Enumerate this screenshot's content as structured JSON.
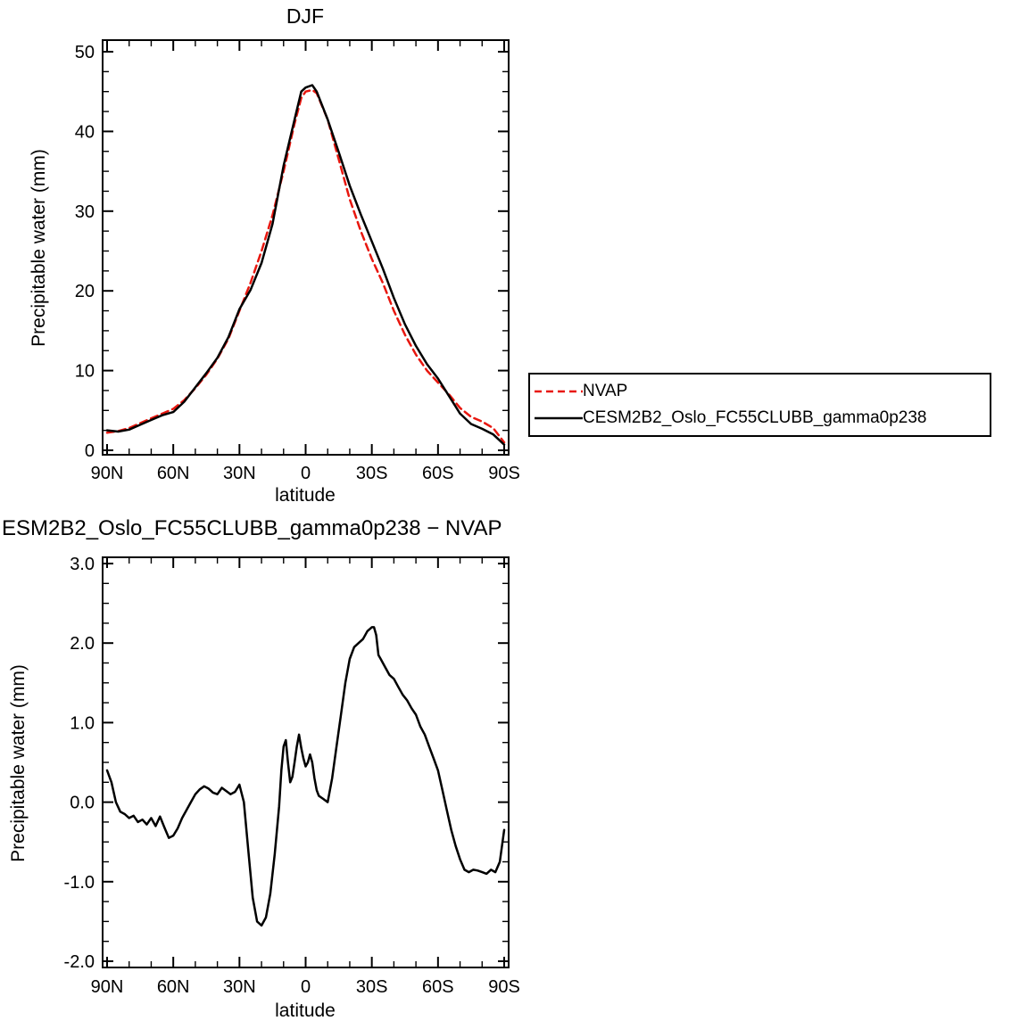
{
  "page": {
    "background": "#ffffff"
  },
  "colors": {
    "nvap_red": "#e8170f",
    "model_black": "#000000"
  },
  "legend": {
    "position": "right-of-top-chart",
    "entries": [
      {
        "label": "NVAP",
        "color": "#e8170f",
        "dashed": true
      },
      {
        "label": "CESM2B2_Oslo_FC55CLUBB_gamma0p238",
        "color": "#000000",
        "dashed": false
      }
    ]
  },
  "chart_data": [
    {
      "type": "line",
      "title": "DJF",
      "xlabel": "latitude",
      "ylabel": "Precipitable water (mm)",
      "xlim": [
        90,
        -90
      ],
      "ylim": [
        0,
        50
      ],
      "grid": false,
      "x_minor_step": 10,
      "y_minor_step": 2.5,
      "x_ticks": [
        {
          "value": 90,
          "label": "90N"
        },
        {
          "value": 60,
          "label": "60N"
        },
        {
          "value": 30,
          "label": "30N"
        },
        {
          "value": 0,
          "label": "0"
        },
        {
          "value": -30,
          "label": "30S"
        },
        {
          "value": -60,
          "label": "60S"
        },
        {
          "value": -90,
          "label": "90S"
        }
      ],
      "y_ticks": [
        {
          "value": 0,
          "label": "0"
        },
        {
          "value": 10,
          "label": "10"
        },
        {
          "value": 20,
          "label": "20"
        },
        {
          "value": 30,
          "label": "30"
        },
        {
          "value": 40,
          "label": "40"
        },
        {
          "value": 50,
          "label": "50"
        }
      ],
      "series": [
        {
          "name": "NVAP",
          "color": "#e8170f",
          "dash": [
            8,
            5
          ],
          "points": [
            [
              90,
              2.2
            ],
            [
              85,
              2.4
            ],
            [
              80,
              2.8
            ],
            [
              75,
              3.4
            ],
            [
              70,
              4.0
            ],
            [
              65,
              4.6
            ],
            [
              60,
              5.2
            ],
            [
              55,
              6.3
            ],
            [
              50,
              7.8
            ],
            [
              45,
              9.5
            ],
            [
              40,
              11.5
            ],
            [
              35,
              14.0
            ],
            [
              30,
              17.5
            ],
            [
              25,
              21.0
            ],
            [
              20,
              25.0
            ],
            [
              15,
              29.5
            ],
            [
              10,
              35.0
            ],
            [
              5,
              41.0
            ],
            [
              2,
              44.2
            ],
            [
              0,
              45.0
            ],
            [
              -3,
              45.2
            ],
            [
              -5,
              44.8
            ],
            [
              -10,
              41.5
            ],
            [
              -15,
              36.5
            ],
            [
              -20,
              31.5
            ],
            [
              -25,
              27.5
            ],
            [
              -30,
              24.0
            ],
            [
              -35,
              21.0
            ],
            [
              -40,
              17.5
            ],
            [
              -45,
              14.5
            ],
            [
              -50,
              12.0
            ],
            [
              -55,
              10.0
            ],
            [
              -60,
              8.5
            ],
            [
              -65,
              7.0
            ],
            [
              -70,
              5.3
            ],
            [
              -75,
              4.2
            ],
            [
              -80,
              3.6
            ],
            [
              -85,
              2.8
            ],
            [
              -90,
              1.0
            ]
          ]
        },
        {
          "name": "CESM2B2_Oslo_FC55CLUBB_gamma0p238",
          "color": "#000000",
          "dash": null,
          "points": [
            [
              90,
              2.5
            ],
            [
              85,
              2.35
            ],
            [
              80,
              2.6
            ],
            [
              75,
              3.2
            ],
            [
              70,
              3.8
            ],
            [
              65,
              4.4
            ],
            [
              60,
              4.8
            ],
            [
              55,
              6.1
            ],
            [
              50,
              7.9
            ],
            [
              45,
              9.7
            ],
            [
              40,
              11.6
            ],
            [
              35,
              14.2
            ],
            [
              30,
              17.7
            ],
            [
              25,
              20.1
            ],
            [
              20,
              23.5
            ],
            [
              15,
              28.4
            ],
            [
              10,
              35.7
            ],
            [
              5,
              41.5
            ],
            [
              2,
              45.0
            ],
            [
              0,
              45.5
            ],
            [
              -3,
              45.8
            ],
            [
              -5,
              45.0
            ],
            [
              -10,
              41.5
            ],
            [
              -15,
              37.4
            ],
            [
              -20,
              33.2
            ],
            [
              -25,
              29.6
            ],
            [
              -30,
              26.2
            ],
            [
              -35,
              22.8
            ],
            [
              -40,
              19.1
            ],
            [
              -45,
              15.8
            ],
            [
              -50,
              13.1
            ],
            [
              -55,
              10.8
            ],
            [
              -60,
              9.0
            ],
            [
              -65,
              6.8
            ],
            [
              -70,
              4.6
            ],
            [
              -75,
              3.3
            ],
            [
              -80,
              2.7
            ],
            [
              -85,
              2.0
            ],
            [
              -90,
              0.7
            ]
          ]
        }
      ]
    },
    {
      "type": "line",
      "title": "ESM2B2_Oslo_FC55CLUBB_gamma0p238 − NVAP",
      "xlabel": "latitude",
      "ylabel": "Precipitable water (mm)",
      "xlim": [
        90,
        -90
      ],
      "ylim": [
        -2,
        3
      ],
      "grid": false,
      "x_minor_step": 10,
      "y_minor_step": 0.25,
      "x_ticks": [
        {
          "value": 90,
          "label": "90N"
        },
        {
          "value": 60,
          "label": "60N"
        },
        {
          "value": 30,
          "label": "30N"
        },
        {
          "value": 0,
          "label": "0"
        },
        {
          "value": -30,
          "label": "30S"
        },
        {
          "value": -60,
          "label": "60S"
        },
        {
          "value": -90,
          "label": "90S"
        }
      ],
      "y_ticks": [
        {
          "value": 3,
          "label": "3.0"
        },
        {
          "value": 2,
          "label": "2.0"
        },
        {
          "value": 1,
          "label": "1.0"
        },
        {
          "value": 0,
          "label": "0.0"
        },
        {
          "value": -1,
          "label": "-1.0"
        },
        {
          "value": -2,
          "label": "-2.0"
        }
      ],
      "series": [
        {
          "name": "CESM2B2_Oslo_FC55CLUBB_gamma0p238 minus NVAP",
          "color": "#000000",
          "dash": null,
          "points": [
            [
              90,
              0.4
            ],
            [
              88,
              0.25
            ],
            [
              86,
              0.0
            ],
            [
              84,
              -0.12
            ],
            [
              82,
              -0.15
            ],
            [
              80,
              -0.2
            ],
            [
              78,
              -0.17
            ],
            [
              76,
              -0.25
            ],
            [
              74,
              -0.22
            ],
            [
              72,
              -0.28
            ],
            [
              70,
              -0.2
            ],
            [
              68,
              -0.3
            ],
            [
              66,
              -0.18
            ],
            [
              64,
              -0.32
            ],
            [
              62,
              -0.45
            ],
            [
              60,
              -0.42
            ],
            [
              58,
              -0.33
            ],
            [
              56,
              -0.2
            ],
            [
              54,
              -0.1
            ],
            [
              52,
              0.0
            ],
            [
              50,
              0.1
            ],
            [
              48,
              0.16
            ],
            [
              46,
              0.2
            ],
            [
              44,
              0.17
            ],
            [
              42,
              0.12
            ],
            [
              40,
              0.1
            ],
            [
              38,
              0.18
            ],
            [
              36,
              0.14
            ],
            [
              34,
              0.1
            ],
            [
              32,
              0.13
            ],
            [
              30,
              0.22
            ],
            [
              28,
              0.0
            ],
            [
              26,
              -0.6
            ],
            [
              24,
              -1.2
            ],
            [
              22,
              -1.5
            ],
            [
              20,
              -1.55
            ],
            [
              18,
              -1.45
            ],
            [
              16,
              -1.15
            ],
            [
              14,
              -0.65
            ],
            [
              12,
              -0.05
            ],
            [
              11,
              0.4
            ],
            [
              10,
              0.7
            ],
            [
              9,
              0.78
            ],
            [
              8,
              0.5
            ],
            [
              7,
              0.25
            ],
            [
              6,
              0.32
            ],
            [
              5,
              0.5
            ],
            [
              4,
              0.7
            ],
            [
              3,
              0.85
            ],
            [
              2,
              0.68
            ],
            [
              1,
              0.55
            ],
            [
              0,
              0.45
            ],
            [
              -1,
              0.5
            ],
            [
              -2,
              0.6
            ],
            [
              -3,
              0.5
            ],
            [
              -4,
              0.3
            ],
            [
              -5,
              0.15
            ],
            [
              -6,
              0.08
            ],
            [
              -8,
              0.04
            ],
            [
              -10,
              0.0
            ],
            [
              -12,
              0.3
            ],
            [
              -14,
              0.7
            ],
            [
              -16,
              1.1
            ],
            [
              -18,
              1.5
            ],
            [
              -20,
              1.8
            ],
            [
              -22,
              1.95
            ],
            [
              -24,
              2.0
            ],
            [
              -26,
              2.05
            ],
            [
              -28,
              2.15
            ],
            [
              -30,
              2.2
            ],
            [
              -31,
              2.2
            ],
            [
              -32,
              2.1
            ],
            [
              -33,
              1.85
            ],
            [
              -34,
              1.8
            ],
            [
              -36,
              1.7
            ],
            [
              -38,
              1.6
            ],
            [
              -40,
              1.55
            ],
            [
              -42,
              1.45
            ],
            [
              -44,
              1.35
            ],
            [
              -46,
              1.28
            ],
            [
              -48,
              1.18
            ],
            [
              -50,
              1.1
            ],
            [
              -52,
              0.95
            ],
            [
              -54,
              0.85
            ],
            [
              -56,
              0.7
            ],
            [
              -58,
              0.55
            ],
            [
              -60,
              0.4
            ],
            [
              -62,
              0.15
            ],
            [
              -64,
              -0.1
            ],
            [
              -66,
              -0.35
            ],
            [
              -68,
              -0.55
            ],
            [
              -70,
              -0.72
            ],
            [
              -72,
              -0.85
            ],
            [
              -74,
              -0.88
            ],
            [
              -76,
              -0.85
            ],
            [
              -78,
              -0.86
            ],
            [
              -80,
              -0.88
            ],
            [
              -82,
              -0.9
            ],
            [
              -84,
              -0.85
            ],
            [
              -86,
              -0.88
            ],
            [
              -88,
              -0.75
            ],
            [
              -90,
              -0.35
            ]
          ]
        }
      ]
    }
  ]
}
